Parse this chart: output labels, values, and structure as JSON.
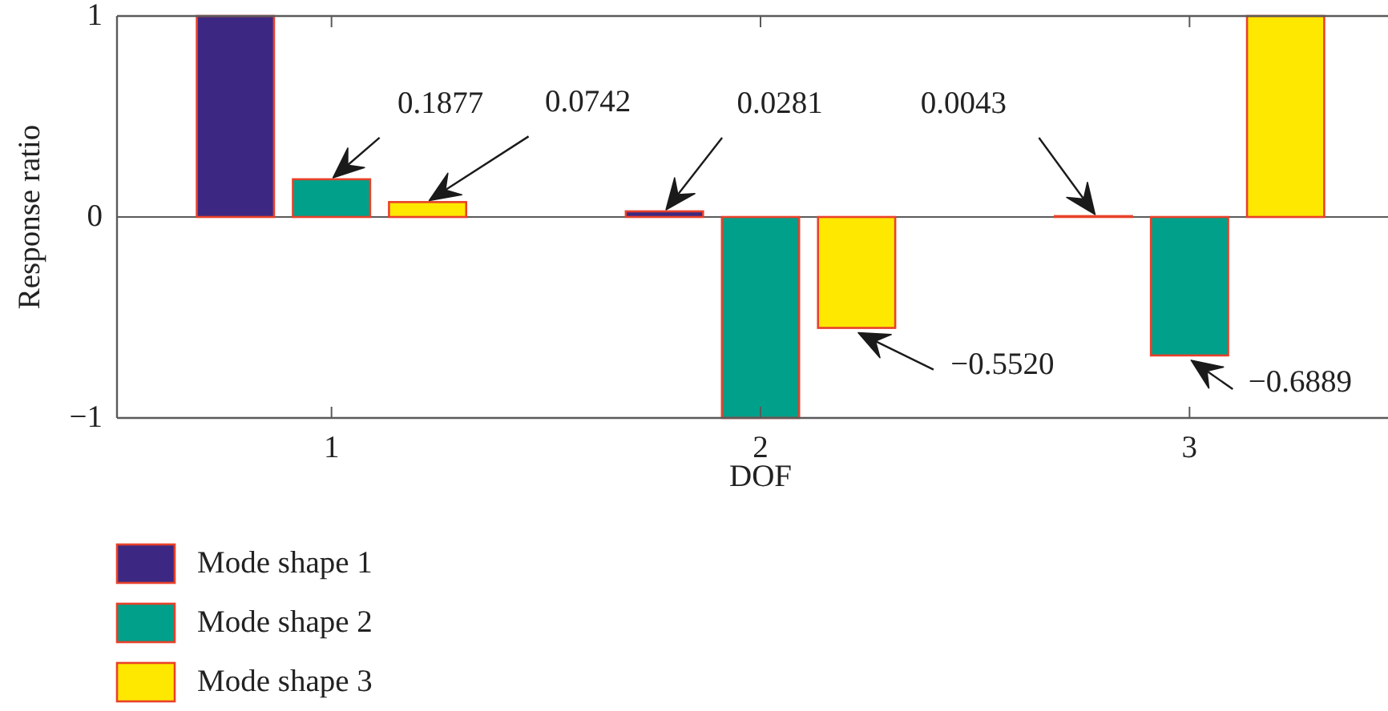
{
  "chart_data": {
    "type": "bar",
    "xlabel": "DOF",
    "ylabel": "Response ratio",
    "categories": [
      "1",
      "2",
      "3"
    ],
    "series": [
      {
        "name": "Mode shape 1",
        "color": "#3c2882",
        "values": [
          1,
          0.0281,
          0.0043
        ]
      },
      {
        "name": "Mode shape 2",
        "color": "#00a08a",
        "values": [
          0.1877,
          -1,
          -0.6889
        ]
      },
      {
        "name": "Mode shape 3",
        "color": "#ffe800",
        "values": [
          0.0742,
          -0.552,
          1
        ]
      }
    ],
    "ylim": [
      -1,
      1
    ],
    "yticks": [
      {
        "value": -1,
        "label": "−1"
      },
      0,
      1
    ],
    "legend": "bottom left",
    "annotations": [
      "0.1877",
      "0.0742",
      "0.0281",
      "0.0043",
      "−0.5520",
      "−0.6889"
    ]
  }
}
